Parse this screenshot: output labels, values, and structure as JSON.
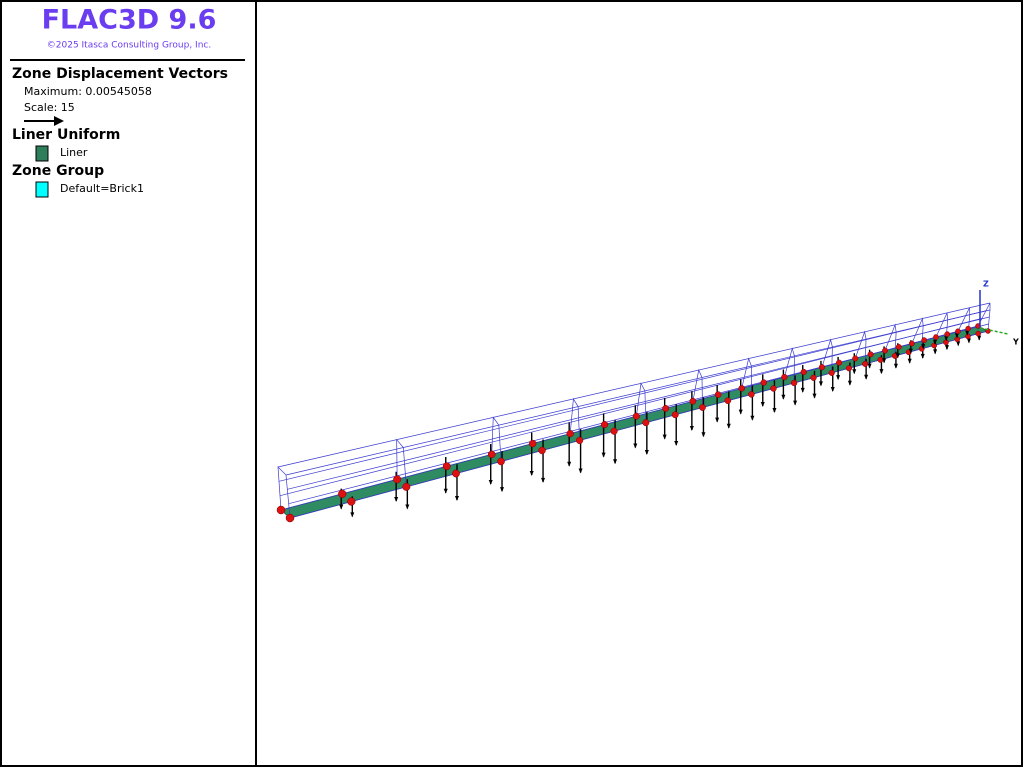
{
  "header": {
    "title": "FLAC3D 9.6",
    "copyright": "©2025 Itasca Consulting Group, Inc."
  },
  "legend": [
    {
      "title": "Zone Displacement Vectors",
      "lines": [
        "Maximum: 0.00545058",
        "Scale: 15"
      ]
    },
    {
      "title": "Liner Uniform",
      "items": [
        {
          "label": "Liner",
          "color": "#2e7d5b"
        }
      ]
    },
    {
      "title": "Zone Group",
      "items": [
        {
          "label": "Default=Brick1",
          "color": "#00ffff"
        }
      ]
    }
  ],
  "axes": {
    "z": "Z",
    "y": "Y"
  }
}
